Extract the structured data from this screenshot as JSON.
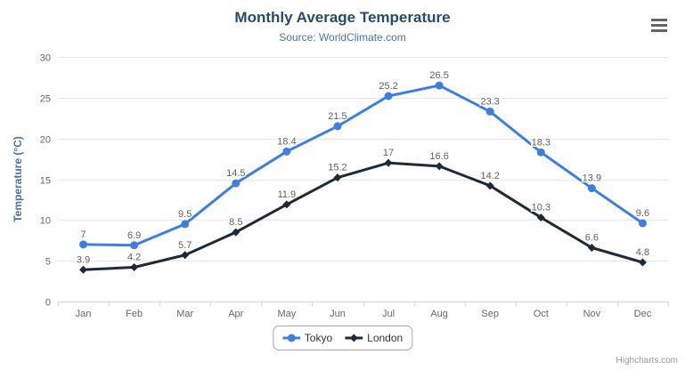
{
  "chart": {
    "title": "Monthly Average Temperature",
    "subtitle": "Source: WorldClimate.com",
    "credits": "Highcharts.com"
  },
  "icons": {
    "context_menu": "hamburger-icon"
  },
  "colors": {
    "title": "#274b6d",
    "subtitle": "#4d759e",
    "axis_title": "#4572a7",
    "axis_labels": "#666666",
    "data_labels": "#606060",
    "gridline": "#e6e6e6",
    "axis_line": "#ccd6eb",
    "legend_text": "#333333",
    "credits": "#999999",
    "tokyo": "#3d7ee1",
    "london": "#1f2a39"
  },
  "chart_data": {
    "type": "line",
    "title": "Monthly Average Temperature",
    "subtitle": "Source: WorldClimate.com",
    "categories": [
      "Jan",
      "Feb",
      "Mar",
      "Apr",
      "May",
      "Jun",
      "Jul",
      "Aug",
      "Sep",
      "Oct",
      "Nov",
      "Dec"
    ],
    "series": [
      {
        "name": "Tokyo",
        "color": "#3d7ee1",
        "marker": "circle",
        "values": [
          7,
          6.9,
          9.5,
          14.5,
          18.4,
          21.5,
          25.2,
          26.5,
          23.3,
          18.3,
          13.9,
          9.6
        ]
      },
      {
        "name": "London",
        "color": "#1f2a39",
        "marker": "diamond",
        "values": [
          3.9,
          4.2,
          5.7,
          8.5,
          11.9,
          15.2,
          17,
          16.6,
          14.2,
          10.3,
          6.6,
          4.8
        ]
      }
    ],
    "xlabel": "",
    "ylabel": "Temperature (°C)",
    "ylim": [
      0,
      30
    ],
    "ytick_step": 5,
    "grid": true,
    "data_labels": true,
    "legend_position": "bottom"
  }
}
